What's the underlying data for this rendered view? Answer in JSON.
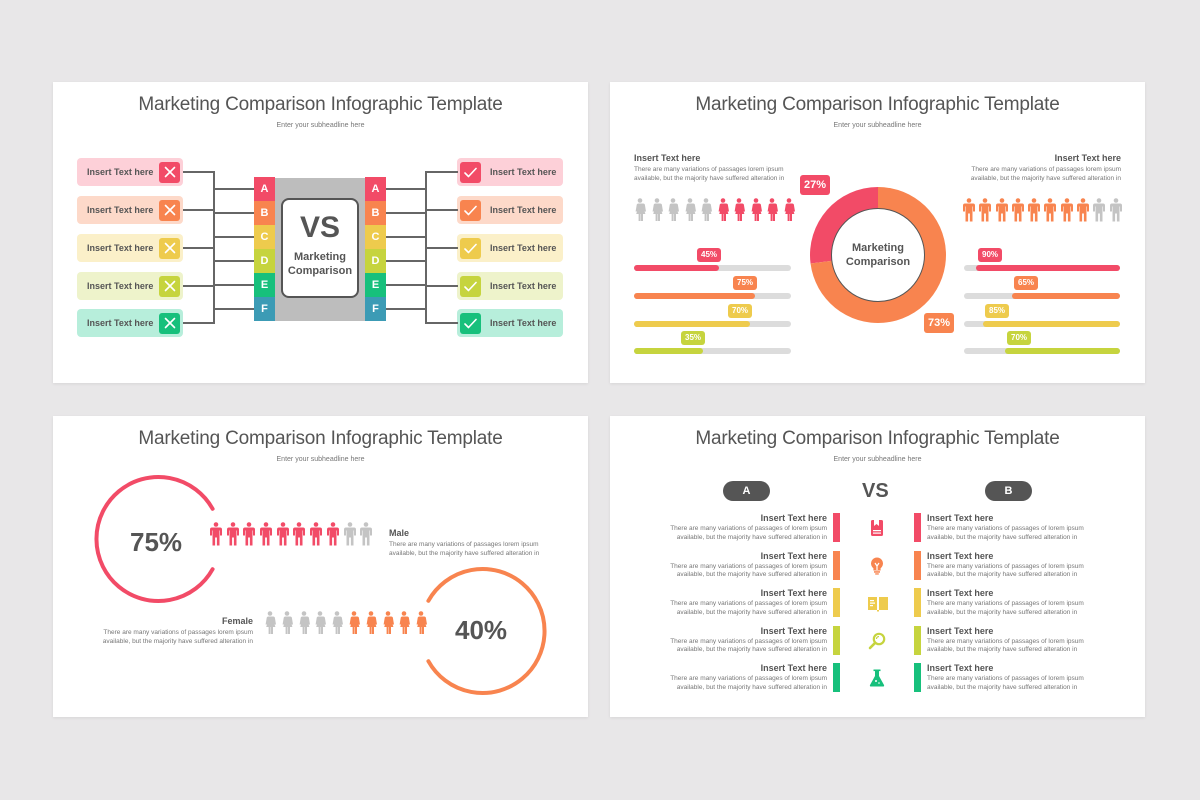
{
  "colors": {
    "background": "#e8e7e8",
    "red": "#f24b67",
    "orange": "#f8844f",
    "yellow": "#eecb4d",
    "lime": "#c6d43e",
    "green": "#17c07c",
    "teal": "#3c9bb5",
    "gray": "#c4c4c4",
    "dark": "#555555"
  },
  "slides": [
    {
      "title": "Marketing Comparison Infographic Template",
      "subtitle": "Enter your subheadline here",
      "left_items": [
        {
          "label": "Insert Text here",
          "icon": "x-icon",
          "color": "#f24b67",
          "bg": "#fdd0d8"
        },
        {
          "label": "Insert Text here",
          "icon": "x-icon",
          "color": "#f8844f",
          "bg": "#fdd9c9"
        },
        {
          "label": "Insert Text here",
          "icon": "x-icon",
          "color": "#eecb4d",
          "bg": "#fbf0c9"
        },
        {
          "label": "Insert Text here",
          "icon": "x-icon",
          "color": "#c6d43e",
          "bg": "#eef3cb"
        },
        {
          "label": "Insert Text here",
          "icon": "x-icon",
          "color": "#17c07c",
          "bg": "#b7eedb"
        }
      ],
      "right_items": [
        {
          "label": "Insert Text here",
          "icon": "check-icon",
          "color": "#f24b67",
          "bg": "#fdd0d8"
        },
        {
          "label": "Insert Text here",
          "icon": "check-icon",
          "color": "#f8844f",
          "bg": "#fdd9c9"
        },
        {
          "label": "Insert Text here",
          "icon": "check-icon",
          "color": "#eecb4d",
          "bg": "#fbf0c9"
        },
        {
          "label": "Insert Text here",
          "icon": "check-icon",
          "color": "#c6d43e",
          "bg": "#eef3cb"
        },
        {
          "label": "Insert Text here",
          "icon": "check-icon",
          "color": "#17c07c",
          "bg": "#b7eedb"
        }
      ],
      "letters": [
        {
          "label": "A",
          "color": "#f24b67"
        },
        {
          "label": "B",
          "color": "#f8844f"
        },
        {
          "label": "C",
          "color": "#eecb4d"
        },
        {
          "label": "D",
          "color": "#c6d43e"
        },
        {
          "label": "E",
          "color": "#17c07c"
        },
        {
          "label": "F",
          "color": "#3c9bb5"
        }
      ],
      "center": {
        "vs": "VS",
        "line1": "Marketing",
        "line2": "Comparison"
      }
    },
    {
      "title": "Marketing Comparison Infographic Template",
      "subtitle": "Enter your subheadline here",
      "left": {
        "heading": "Insert Text here",
        "para1": "There are many variations of passages lorem ipsum",
        "para2": "available, but the majority have suffered  alteration in",
        "people": {
          "type": "female",
          "total": 10,
          "highlighted": 5,
          "highlight_side": "right",
          "color": "#f24b67"
        },
        "bars": [
          {
            "label": "45%",
            "fill": 54,
            "color": "#f24b67"
          },
          {
            "label": "75%",
            "fill": 77,
            "color": "#f8844f"
          },
          {
            "label": "70%",
            "fill": 74,
            "color": "#eecb4d"
          },
          {
            "label": "35%",
            "fill": 44,
            "color": "#c6d43e"
          }
        ]
      },
      "donut": {
        "center_line1": "Marketing",
        "center_line2": "Comparison",
        "slices": [
          {
            "label": "27%",
            "value": 27,
            "color": "#f24b67"
          },
          {
            "label": "73%",
            "value": 73,
            "color": "#f8844f"
          }
        ]
      },
      "right": {
        "heading": "Insert Text here",
        "para1": "There are many variations of passages lorem ipsum",
        "para2": "available, but the majority have suffered  alteration in",
        "people": {
          "type": "male",
          "total": 10,
          "highlighted": 8,
          "highlight_side": "left",
          "color": "#f8844f"
        },
        "bars": [
          {
            "label": "90%",
            "fill": 92,
            "color": "#f24b67"
          },
          {
            "label": "65%",
            "fill": 69,
            "color": "#f8844f"
          },
          {
            "label": "85%",
            "fill": 88,
            "color": "#eecb4d"
          },
          {
            "label": "70%",
            "fill": 74,
            "color": "#c6d43e"
          }
        ]
      }
    },
    {
      "title": "Marketing Comparison Infographic Template",
      "subtitle": "Enter your subheadline here",
      "male": {
        "percent": "75%",
        "label": "Male",
        "para1": "There are many variations of passages lorem ipsum",
        "para2": "available, but the majority have suffered  alteration in",
        "people": {
          "type": "male",
          "total": 10,
          "highlighted": 8,
          "highlight_side": "left",
          "color": "#f24b67"
        }
      },
      "female": {
        "percent": "40%",
        "label": "Female",
        "para1": "There are many variations of passages lorem ipsum",
        "para2": "available, but the majority have suffered  alteration in",
        "people": {
          "type": "female",
          "total": 10,
          "highlighted": 5,
          "highlight_side": "right",
          "color": "#f8844f"
        }
      }
    },
    {
      "title": "Marketing Comparison Infographic Template",
      "subtitle": "Enter your subheadline here",
      "pill_a": "A",
      "pill_b": "B",
      "vs": "VS",
      "rows": [
        {
          "color": "#f24b67",
          "icon": "book-icon",
          "a": {
            "heading": "Insert Text here",
            "para1": "There are many variations of passages of lorem ipsum",
            "para2": "available, but the majority have suffered  alteration in"
          },
          "b": {
            "heading": "Insert Text here",
            "para1": "There are many variations of passages of lorem ipsum",
            "para2": "available, but the majority have suffered  alteration in"
          }
        },
        {
          "color": "#f8844f",
          "icon": "lightbulb-icon",
          "a": {
            "heading": "Insert Text here",
            "para1": "There are many variations of passages of lorem ipsum",
            "para2": "available, but the majority have suffered  alteration in"
          },
          "b": {
            "heading": "Insert Text here",
            "para1": "There are many variations of passages of lorem ipsum",
            "para2": "available, but the majority have suffered  alteration in"
          }
        },
        {
          "color": "#eecb4d",
          "icon": "open-book-icon",
          "a": {
            "heading": "Insert Text here",
            "para1": "There are many variations of passages of lorem ipsum",
            "para2": "available, but the majority have suffered  alteration in"
          },
          "b": {
            "heading": "Insert Text here",
            "para1": "There are many variations of passages of lorem ipsum",
            "para2": "available, but the majority have suffered  alteration in"
          }
        },
        {
          "color": "#c6d43e",
          "icon": "magnifier-icon",
          "a": {
            "heading": "Insert Text here",
            "para1": "There are many variations of passages of lorem ipsum",
            "para2": "available, but the majority have suffered  alteration in"
          },
          "b": {
            "heading": "Insert Text here",
            "para1": "There are many variations of passages of lorem ipsum",
            "para2": "available, but the majority have suffered  alteration in"
          }
        },
        {
          "color": "#17c07c",
          "icon": "flask-icon",
          "a": {
            "heading": "Insert Text here",
            "para1": "There are many variations of passages of lorem ipsum",
            "para2": "available, but the majority have suffered  alteration in"
          },
          "b": {
            "heading": "Insert Text here",
            "para1": "There are many variations of passages of lorem ipsum",
            "para2": "available, but the majority have suffered  alteration in"
          }
        }
      ]
    }
  ]
}
